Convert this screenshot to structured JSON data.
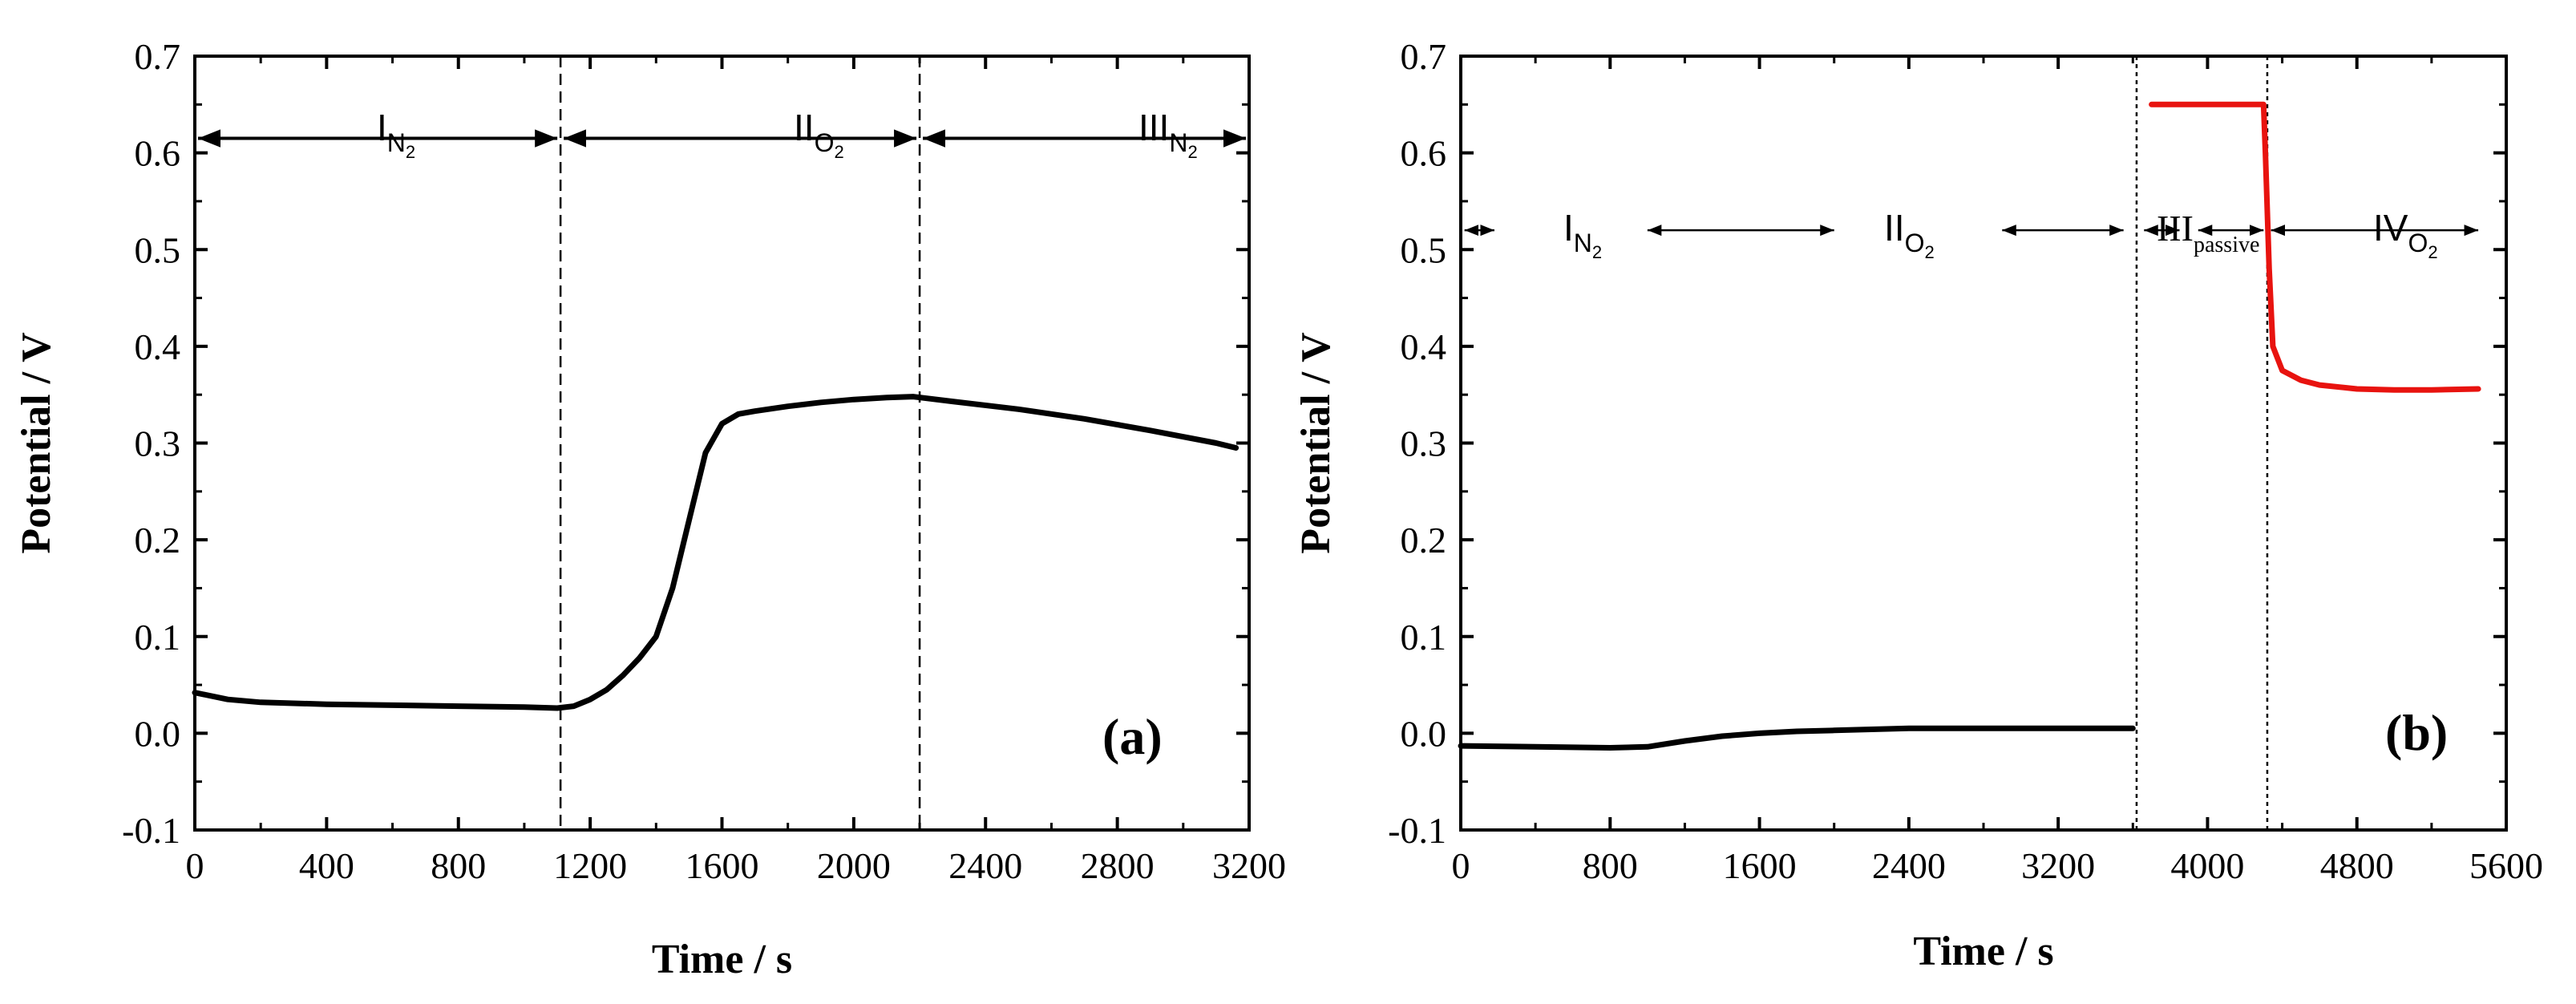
{
  "chart_data": [
    {
      "panel": "(a)",
      "type": "line",
      "xlabel": "Time / s",
      "ylabel": "Potential / V",
      "xlim": [
        0,
        3200
      ],
      "ylim": [
        -0.1,
        0.7
      ],
      "xticks": [
        "0",
        "400",
        "800",
        "1200",
        "1600",
        "2000",
        "2400",
        "2800",
        "3200"
      ],
      "yticks": [
        "-0.1",
        "0.0",
        "0.1",
        "0.2",
        "0.3",
        "0.4",
        "0.5",
        "0.6",
        "0.7"
      ],
      "series": [
        {
          "name": "potential",
          "color": "#000000",
          "x": [
            0,
            100,
            200,
            400,
            600,
            800,
            1000,
            1100,
            1150,
            1200,
            1250,
            1300,
            1350,
            1400,
            1450,
            1500,
            1550,
            1600,
            1650,
            1700,
            1800,
            1900,
            2000,
            2100,
            2180,
            2300,
            2500,
            2700,
            2900,
            3100,
            3160
          ],
          "y": [
            0.042,
            0.035,
            0.032,
            0.03,
            0.029,
            0.028,
            0.027,
            0.026,
            0.028,
            0.035,
            0.045,
            0.06,
            0.078,
            0.1,
            0.15,
            0.22,
            0.29,
            0.32,
            0.33,
            0.333,
            0.338,
            0.342,
            0.345,
            0.347,
            0.348,
            0.343,
            0.335,
            0.325,
            0.313,
            0.3,
            0.295
          ]
        }
      ],
      "vlines": [
        1110,
        2200
      ],
      "regions": [
        {
          "label": "I",
          "sub": "N",
          "sub2": "2",
          "start": 0,
          "end": 1110
        },
        {
          "label": "II",
          "sub": "O",
          "sub2": "2",
          "start": 1110,
          "end": 2200
        },
        {
          "label": "III",
          "sub": "N",
          "sub2": "2",
          "start": 2200,
          "end": 3200
        }
      ],
      "arrow_y": 0.615
    },
    {
      "panel": "(b)",
      "type": "line",
      "xlabel": "Time / s",
      "ylabel": "Potential / V",
      "xlim": [
        0,
        5600
      ],
      "ylim": [
        -0.1,
        0.7
      ],
      "xticks": [
        "0",
        "800",
        "1600",
        "2400",
        "3200",
        "4000",
        "4800",
        "5600"
      ],
      "yticks": [
        "-0.1",
        "0.0",
        "0.1",
        "0.2",
        "0.3",
        "0.4",
        "0.5",
        "0.6",
        "0.7"
      ],
      "series": [
        {
          "name": "potential-black",
          "color": "#000000",
          "x": [
            0,
            400,
            800,
            1000,
            1200,
            1400,
            1600,
            1800,
            2000,
            2200,
            2400,
            2800,
            3200,
            3600
          ],
          "y": [
            -0.013,
            -0.014,
            -0.015,
            -0.014,
            -0.008,
            -0.003,
            0.0,
            0.002,
            0.003,
            0.004,
            0.005,
            0.005,
            0.005,
            0.005
          ]
        },
        {
          "name": "potential-red",
          "color": "#e8130f",
          "x": [
            3700,
            3900,
            4100,
            4300,
            4310,
            4330,
            4350,
            4400,
            4500,
            4600,
            4800,
            5000,
            5200,
            5450
          ],
          "y": [
            0.65,
            0.65,
            0.65,
            0.65,
            0.6,
            0.48,
            0.4,
            0.375,
            0.365,
            0.36,
            0.356,
            0.355,
            0.355,
            0.356
          ]
        }
      ],
      "vlines": [
        3620,
        4320
      ],
      "regions": [
        {
          "label": "I",
          "sub": "N",
          "sub2": "2",
          "style": "sans"
        },
        {
          "label": "II",
          "sub": "O",
          "sub2": "2",
          "style": "sans"
        },
        {
          "label": "III",
          "sub": "passive",
          "sub2": "",
          "style": "serif"
        },
        {
          "label": "IV",
          "sub": "O",
          "sub2": "2",
          "style": "sans"
        }
      ],
      "arrow_y": 0.52
    }
  ]
}
